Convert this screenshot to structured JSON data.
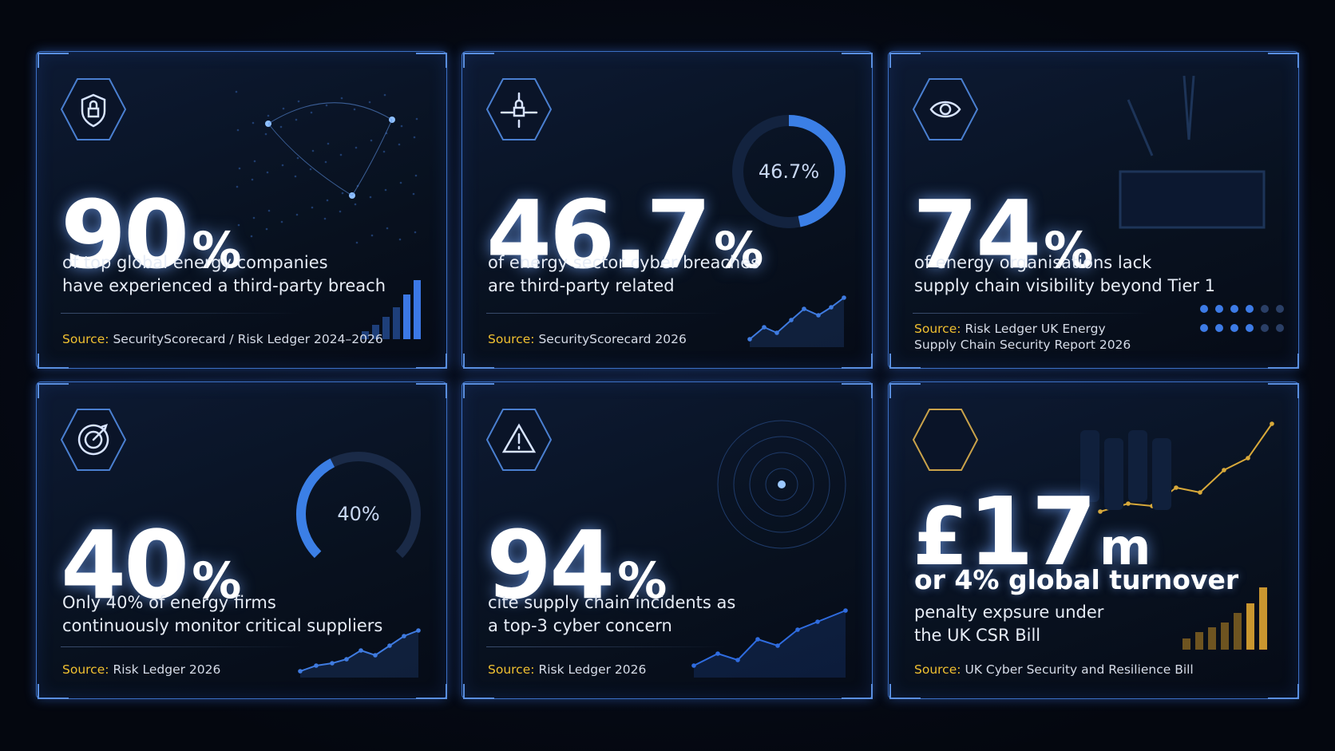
{
  "cards": [
    {
      "value": 90,
      "unit": "%",
      "description": [
        "of top global energy companies",
        "have experienced a third-party breach"
      ],
      "source_label": "Source:",
      "source": [
        "SecurityScorecard / Risk Ledger 2024–2026"
      ]
    },
    {
      "value": 46.7,
      "unit": "%",
      "ring_label": "46.7%",
      "description": [
        "of energy sector cyber breaches",
        "are third-party related"
      ],
      "source_label": "Source:",
      "source": [
        "SecurityScorecard 2026"
      ]
    },
    {
      "value": 74,
      "unit": "%",
      "description": [
        "of energy organisations lack",
        "supply chain visibility beyond Tier 1"
      ],
      "source_label": "Source:",
      "source": [
        "Risk Ledger UK Energy",
        "Supply Chain Security Report 2026"
      ]
    },
    {
      "value": 40,
      "unit": "%",
      "ring_label": "40%",
      "description": [
        "Only 40% of energy firms",
        "continuously monitor critical suppliers"
      ],
      "source_label": "Source:",
      "source": [
        "Risk Ledger 2026"
      ]
    },
    {
      "value": 94,
      "unit": "%",
      "description": [
        "cite supply chain incidents as",
        "a top-3 cyber concern"
      ],
      "source_label": "Source:",
      "source": [
        "Risk Ledger 2026"
      ]
    },
    {
      "prefix": "£",
      "value": 17,
      "unit": "m",
      "headline": "or 4% global turnover",
      "description": [
        "penalty expsure under",
        "the UK CSR Bill"
      ],
      "source_label": "Source:",
      "source": [
        "UK Cyber Security and Resilience Bill"
      ]
    }
  ]
}
